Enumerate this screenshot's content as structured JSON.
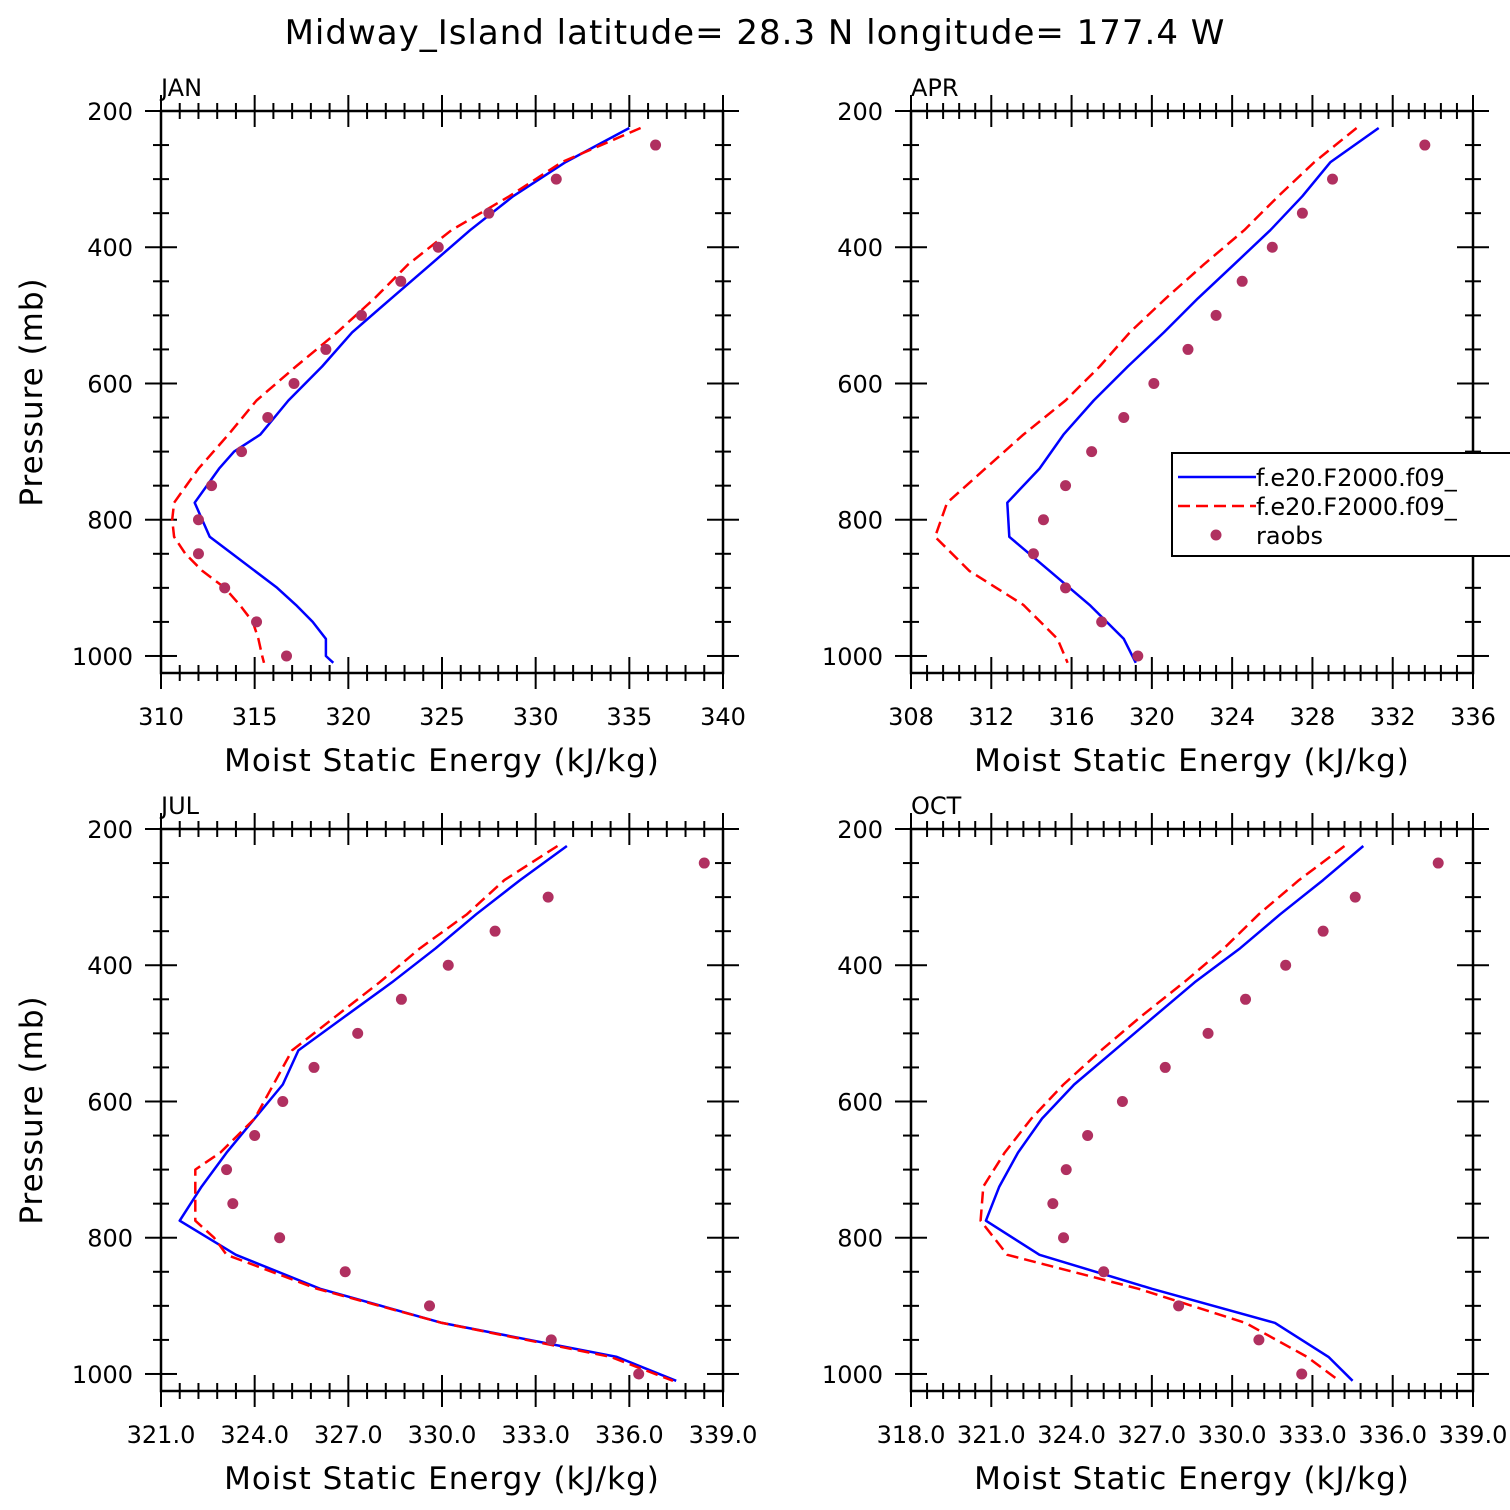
{
  "figure": {
    "title": "Midway_Island  latitude= 28.3 N longitude= 177.4 W"
  },
  "colors": {
    "model_a": "#0000ff",
    "model_b": "#ff0000",
    "raobs": "#b03060",
    "axis": "#000000"
  },
  "legend": {
    "entries": [
      {
        "label": "f.e20.F2000.f09_",
        "style": "solid",
        "color": "#0000ff"
      },
      {
        "label": "f.e20.F2000.f09_",
        "style": "dashed",
        "color": "#ff0000"
      },
      {
        "label": "raobs",
        "style": "dot",
        "color": "#b03060"
      }
    ]
  },
  "chart_data": [
    {
      "type": "line",
      "panel": "JAN",
      "xlabel": "Moist Static Energy (kJ/kg)",
      "ylabel": "Pressure (mb)",
      "xlim": [
        310,
        340
      ],
      "xticks": [
        310,
        315,
        320,
        325,
        330,
        335,
        340
      ],
      "xtick_labels": [
        "310",
        "315",
        "320",
        "325",
        "330",
        "335",
        "340"
      ],
      "ylim": [
        200,
        1025
      ],
      "yticks": [
        200,
        400,
        600,
        800,
        1000
      ],
      "ytick_labels": [
        "200",
        "400",
        "600",
        "800",
        "1000"
      ],
      "series": [
        {
          "name": "f.e20.F2000.f09_ (solid)",
          "p": [
            225,
            275,
            325,
            375,
            425,
            475,
            525,
            575,
            625,
            675,
            700,
            725,
            775,
            800,
            825,
            850,
            875,
            900,
            925,
            950,
            975,
            1000,
            1010
          ],
          "mse": [
            335.0,
            331.6,
            328.8,
            326.5,
            324.4,
            322.3,
            320.2,
            318.6,
            316.8,
            315.3,
            313.9,
            313.1,
            311.8,
            312.2,
            312.6,
            313.8,
            315.0,
            316.2,
            317.2,
            318.1,
            318.8,
            318.8,
            319.2
          ]
        },
        {
          "name": "f.e20.F2000.f09_ (dashed)",
          "p": [
            225,
            275,
            325,
            375,
            425,
            475,
            525,
            575,
            625,
            675,
            700,
            725,
            775,
            800,
            825,
            850,
            875,
            900,
            925,
            950,
            975,
            1000,
            1010
          ],
          "mse": [
            335.6,
            331.4,
            328.6,
            325.5,
            323.2,
            321.4,
            319.4,
            317.2,
            315.1,
            313.6,
            312.8,
            312.0,
            310.7,
            310.6,
            310.7,
            311.3,
            312.2,
            313.4,
            314.2,
            314.9,
            315.2,
            315.4,
            315.5
          ]
        },
        {
          "name": "raobs",
          "p": [
            250,
            300,
            350,
            400,
            450,
            500,
            550,
            600,
            650,
            700,
            750,
            800,
            850,
            900,
            950,
            1000
          ],
          "mse": [
            336.4,
            331.1,
            327.5,
            324.8,
            322.8,
            320.7,
            318.8,
            317.1,
            315.7,
            314.3,
            312.7,
            312.0,
            312.0,
            313.4,
            315.1,
            316.7
          ]
        }
      ]
    },
    {
      "type": "line",
      "panel": "APR",
      "xlabel": "Moist Static Energy (kJ/kg)",
      "ylabel": "",
      "xlim": [
        308,
        336
      ],
      "xticks": [
        308,
        312,
        316,
        320,
        324,
        328,
        332,
        336
      ],
      "xtick_labels": [
        "308",
        "312",
        "316",
        "320",
        "324",
        "328",
        "332",
        "336"
      ],
      "ylim": [
        200,
        1025
      ],
      "yticks": [
        200,
        400,
        600,
        800,
        1000
      ],
      "ytick_labels": [
        "200",
        "400",
        "600",
        "800",
        "1000"
      ],
      "series": [
        {
          "name": "f.e20.F2000.f09_ (solid)",
          "p": [
            225,
            275,
            325,
            375,
            425,
            475,
            525,
            575,
            625,
            675,
            725,
            775,
            825,
            875,
            925,
            975,
            1010
          ],
          "mse": [
            331.3,
            328.9,
            327.5,
            325.9,
            324.1,
            322.3,
            320.6,
            318.8,
            317.1,
            315.6,
            314.4,
            312.8,
            312.9,
            314.9,
            316.9,
            318.6,
            319.2
          ]
        },
        {
          "name": "f.e20.F2000.f09_ (dashed)",
          "p": [
            225,
            275,
            325,
            375,
            425,
            475,
            525,
            575,
            625,
            675,
            725,
            775,
            825,
            875,
            925,
            975,
            1010
          ],
          "mse": [
            330.2,
            328.1,
            326.3,
            324.6,
            322.6,
            320.7,
            318.9,
            317.4,
            315.7,
            313.6,
            311.7,
            309.8,
            309.2,
            310.9,
            313.6,
            315.3,
            315.8
          ]
        },
        {
          "name": "raobs",
          "p": [
            250,
            300,
            350,
            400,
            450,
            500,
            550,
            600,
            650,
            700,
            750,
            800,
            850,
            900,
            950,
            1000
          ],
          "mse": [
            333.6,
            329.0,
            327.5,
            326.0,
            324.5,
            323.2,
            321.8,
            320.1,
            318.6,
            317.0,
            315.7,
            314.6,
            314.1,
            315.7,
            317.5,
            319.3
          ]
        }
      ]
    },
    {
      "type": "line",
      "panel": "JUL",
      "xlabel": "Moist Static Energy (kJ/kg)",
      "ylabel": "Pressure (mb)",
      "xlim": [
        321,
        339
      ],
      "xticks": [
        321,
        324,
        327,
        330,
        333,
        336,
        339
      ],
      "xtick_labels": [
        "321.0",
        "324.0",
        "327.0",
        "330.0",
        "333.0",
        "336.0",
        "339.0"
      ],
      "ylim": [
        200,
        1025
      ],
      "yticks": [
        200,
        400,
        600,
        800,
        1000
      ],
      "ytick_labels": [
        "200",
        "400",
        "600",
        "800",
        "1000"
      ],
      "series": [
        {
          "name": "f.e20.F2000.f09_ (solid)",
          "p": [
            225,
            275,
            325,
            375,
            425,
            475,
            525,
            575,
            625,
            675,
            725,
            775,
            825,
            875,
            925,
            975,
            1010
          ],
          "mse": [
            334.0,
            332.5,
            331.1,
            329.8,
            328.4,
            326.9,
            325.4,
            324.9,
            324.0,
            323.1,
            322.3,
            321.6,
            323.4,
            326.1,
            330.0,
            335.6,
            337.5
          ]
        },
        {
          "name": "f.e20.F2000.f09_ (dashed)",
          "p": [
            225,
            275,
            325,
            375,
            425,
            475,
            525,
            575,
            625,
            675,
            700,
            725,
            775,
            800,
            825,
            875,
            925,
            975,
            1010
          ],
          "mse": [
            333.7,
            332.0,
            330.8,
            329.3,
            328.0,
            326.6,
            325.2,
            324.6,
            324.0,
            322.9,
            322.1,
            322.1,
            322.1,
            322.7,
            323.1,
            326.0,
            330.0,
            335.4,
            337.4
          ]
        },
        {
          "name": "raobs",
          "p": [
            250,
            300,
            350,
            400,
            450,
            500,
            550,
            600,
            650,
            700,
            750,
            800,
            850,
            900,
            950,
            1000
          ],
          "mse": [
            338.4,
            333.4,
            331.7,
            330.2,
            328.7,
            327.3,
            325.9,
            324.9,
            324.0,
            323.1,
            323.3,
            324.8,
            326.9,
            329.6,
            333.5,
            336.3
          ]
        }
      ]
    },
    {
      "type": "line",
      "panel": "OCT",
      "xlabel": "Moist Static Energy (kJ/kg)",
      "ylabel": "",
      "xlim": [
        318,
        339
      ],
      "xticks": [
        318,
        321,
        324,
        327,
        330,
        333,
        336,
        339
      ],
      "xtick_labels": [
        "318.0",
        "321.0",
        "324.0",
        "327.0",
        "330.0",
        "333.0",
        "336.0",
        "339.0"
      ],
      "ylim": [
        200,
        1025
      ],
      "yticks": [
        200,
        400,
        600,
        800,
        1000
      ],
      "ytick_labels": [
        "200",
        "400",
        "600",
        "800",
        "1000"
      ],
      "series": [
        {
          "name": "f.e20.F2000.f09_ (solid)",
          "p": [
            225,
            275,
            325,
            375,
            425,
            475,
            525,
            575,
            625,
            675,
            725,
            775,
            825,
            875,
            925,
            975,
            1010
          ],
          "mse": [
            334.9,
            333.4,
            331.8,
            330.3,
            328.6,
            327.1,
            325.6,
            324.1,
            322.9,
            322.0,
            321.3,
            320.8,
            322.8,
            327.0,
            331.6,
            333.6,
            334.5
          ]
        },
        {
          "name": "f.e20.F2000.f09_ (dashed)",
          "p": [
            225,
            275,
            325,
            375,
            425,
            475,
            525,
            575,
            625,
            675,
            725,
            775,
            825,
            875,
            925,
            975,
            1010
          ],
          "mse": [
            334.2,
            332.5,
            331.0,
            329.7,
            328.2,
            326.6,
            325.1,
            323.7,
            322.5,
            321.5,
            320.7,
            320.6,
            321.6,
            326.5,
            330.5,
            332.8,
            334.0
          ]
        },
        {
          "name": "raobs",
          "p": [
            250,
            300,
            350,
            400,
            450,
            500,
            550,
            600,
            650,
            700,
            750,
            800,
            850,
            900,
            950,
            1000
          ],
          "mse": [
            337.7,
            334.6,
            333.4,
            332.0,
            330.5,
            329.1,
            327.5,
            325.9,
            324.6,
            323.8,
            323.3,
            323.7,
            325.2,
            328.0,
            331.0,
            332.6
          ]
        }
      ]
    }
  ]
}
